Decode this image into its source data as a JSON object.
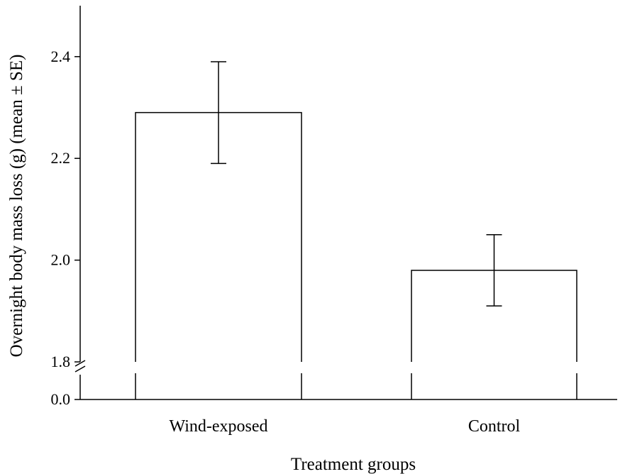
{
  "chart_data": {
    "type": "bar",
    "title": "",
    "xlabel": "Treatment groups",
    "ylabel": "Overnight body mass loss (g) (mean ± SE)",
    "categories": [
      "Wind-exposed",
      "Control"
    ],
    "values": [
      2.29,
      1.98
    ],
    "errors": [
      0.1,
      0.07
    ],
    "axis_break": {
      "lower": 0.0,
      "upper": 1.8
    },
    "ylim": [
      1.8,
      2.5
    ],
    "y_ticks": [
      {
        "value": 0.0,
        "label": "0.0"
      },
      {
        "value": 1.8,
        "label": "1.8"
      },
      {
        "value": 2.0,
        "label": "2.0"
      },
      {
        "value": 2.2,
        "label": "2.2"
      },
      {
        "value": 2.4,
        "label": "2.4"
      }
    ],
    "grid": false,
    "legend": "none",
    "colors": {
      "bar_fill": "#ffffff",
      "stroke": "#000000"
    }
  }
}
